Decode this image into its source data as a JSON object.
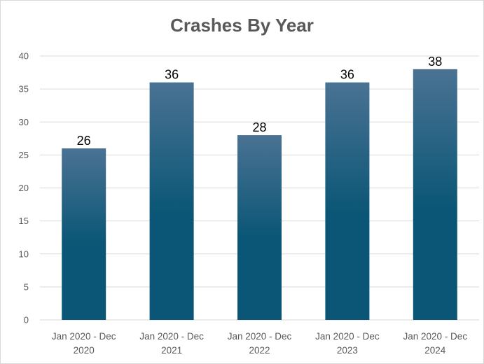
{
  "chart_data": {
    "type": "bar",
    "title": "Crashes By Year",
    "xlabel": "",
    "ylabel": "",
    "categories": [
      [
        "Jan 2020 - Dec",
        "2020"
      ],
      [
        "Jan 2020 - Dec",
        "2021"
      ],
      [
        "Jan 2020 - Dec",
        "2022"
      ],
      [
        "Jan 2020 - Dec",
        "2023"
      ],
      [
        "Jan 2020 - Dec",
        "2024"
      ]
    ],
    "values": [
      26,
      36,
      28,
      36,
      38
    ],
    "ylim": [
      0,
      40
    ],
    "yticks": [
      0,
      5,
      10,
      15,
      20,
      25,
      30,
      35,
      40
    ],
    "grid": true,
    "legend": "none",
    "data_labels": true,
    "colors": {
      "bar_top": "#4a7293",
      "bar_bottom": "#0b5676",
      "grid": "#d9d9d9",
      "title": "#595959",
      "tick": "#595959"
    }
  }
}
